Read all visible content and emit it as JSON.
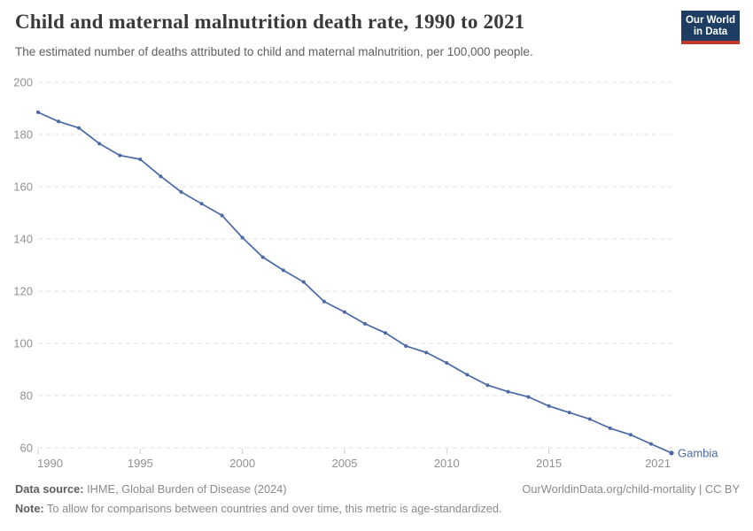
{
  "header": {
    "title": "Child and maternal malnutrition death rate, 1990 to 2021",
    "subtitle": "The estimated number of deaths attributed to child and maternal malnutrition, per 100,000 people.",
    "logo": {
      "line1": "Our World",
      "line2": "in Data",
      "bg_color": "#1d3d63",
      "bar_color": "#c2392a"
    }
  },
  "chart_data": {
    "type": "line",
    "title": "Child and maternal malnutrition death rate, 1990 to 2021",
    "xlabel": "",
    "ylabel": "",
    "x": [
      1990,
      1991,
      1992,
      1993,
      1994,
      1995,
      1996,
      1997,
      1998,
      1999,
      2000,
      2001,
      2002,
      2003,
      2004,
      2005,
      2006,
      2007,
      2008,
      2009,
      2010,
      2011,
      2012,
      2013,
      2014,
      2015,
      2016,
      2017,
      2018,
      2019,
      2020,
      2021
    ],
    "series": [
      {
        "name": "Gambia",
        "color": "#4a69a5",
        "values": [
          188.5,
          185,
          182.5,
          176.5,
          172,
          170.5,
          164,
          158,
          153.5,
          149,
          140.5,
          133,
          128,
          123.5,
          116,
          112,
          107.5,
          104,
          99,
          96.5,
          92.5,
          88,
          84,
          81.5,
          79.5,
          76,
          73.5,
          71,
          67.5,
          65,
          61.5,
          58
        ]
      }
    ],
    "xlim": [
      1990,
      2021
    ],
    "ylim": [
      60,
      200
    ],
    "y_ticks": [
      60,
      80,
      100,
      120,
      140,
      160,
      180,
      200
    ],
    "x_tick_labels": [
      "1990",
      "1995",
      "2000",
      "2005",
      "2010",
      "2015",
      "2021"
    ],
    "x_tick_label_years": [
      1990,
      1995,
      2000,
      2005,
      2010,
      2015,
      2021
    ],
    "x_tick_marks": [
      1990,
      1995,
      2000,
      2005,
      2010,
      2015
    ],
    "grid": "horizontal-dashed",
    "legend": "series-label-at-line-end",
    "colors": {
      "grid": "#e0e0e0",
      "tick": "#c9c9c9",
      "axis_label": "#919191"
    }
  },
  "footer": {
    "data_source_label": "Data source:",
    "data_source_value": " IHME, Global Burden of Disease (2024)",
    "link": "OurWorldinData.org/child-mortality | CC BY",
    "note_label": "Note:",
    "note_value": " To allow for comparisons between countries and over time, this metric is age-standardized."
  }
}
